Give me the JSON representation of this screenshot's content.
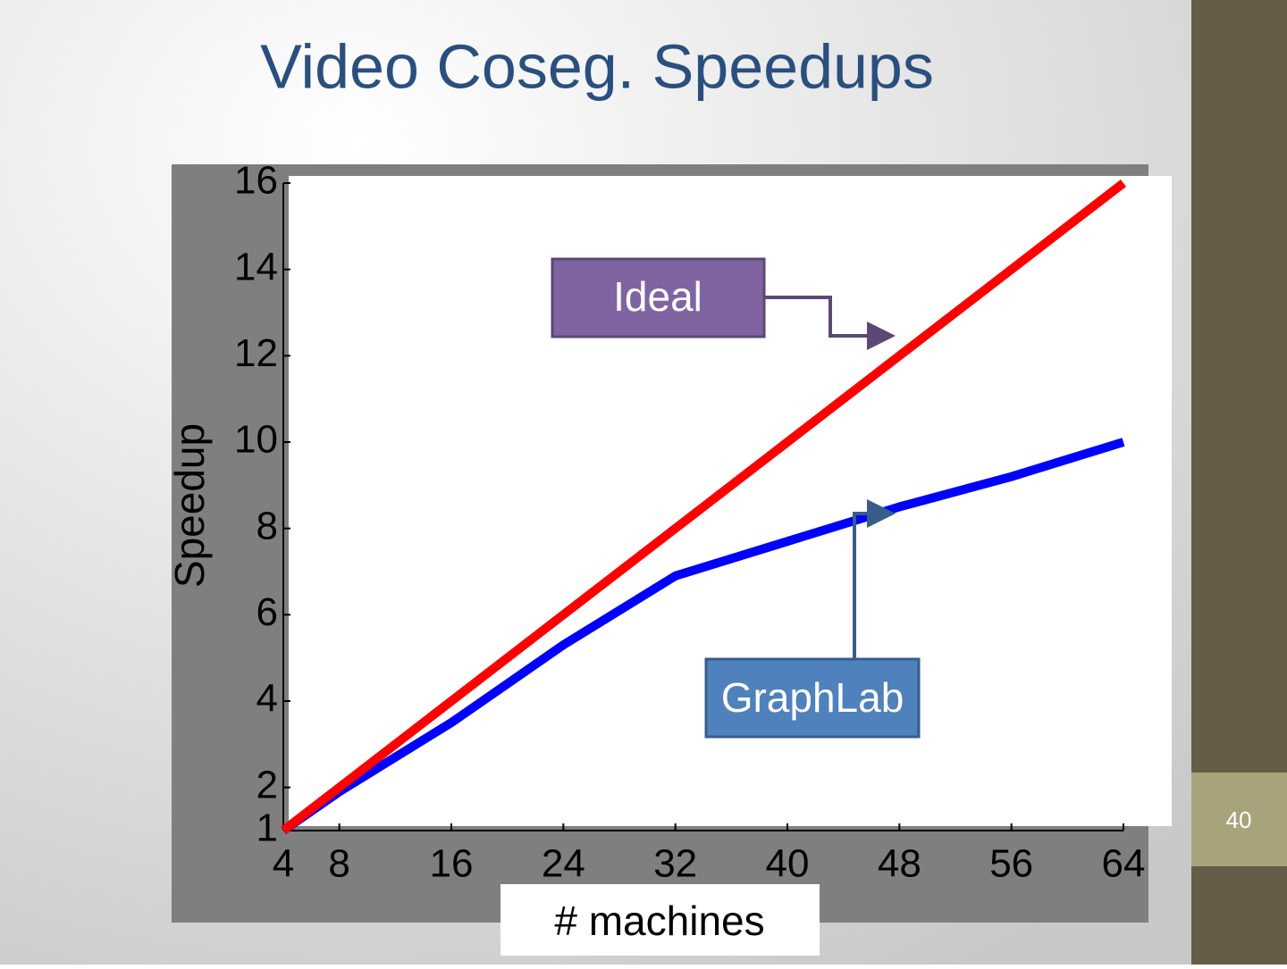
{
  "title": "Video Coseg. Speedups",
  "page_number": "40",
  "chart_data": {
    "type": "line",
    "xlabel": "# machines",
    "ylabel": "Speedup",
    "x": [
      4,
      8,
      16,
      24,
      32,
      40,
      48,
      56,
      64
    ],
    "series": [
      {
        "name": "Ideal",
        "color": "#ff0000",
        "values": [
          1,
          2,
          4,
          6,
          8,
          10,
          12,
          14,
          16
        ]
      },
      {
        "name": "GraphLab",
        "color": "#0000ff",
        "values": [
          1,
          1.9,
          3.5,
          5.3,
          6.9,
          7.7,
          8.5,
          9.2,
          10
        ]
      }
    ],
    "xlim": [
      4,
      64
    ],
    "ylim": [
      1,
      16
    ],
    "xticks": [
      4,
      8,
      16,
      24,
      32,
      40,
      48,
      56,
      64
    ],
    "yticks": [
      1,
      2,
      4,
      6,
      8,
      10,
      12,
      14,
      16
    ]
  }
}
